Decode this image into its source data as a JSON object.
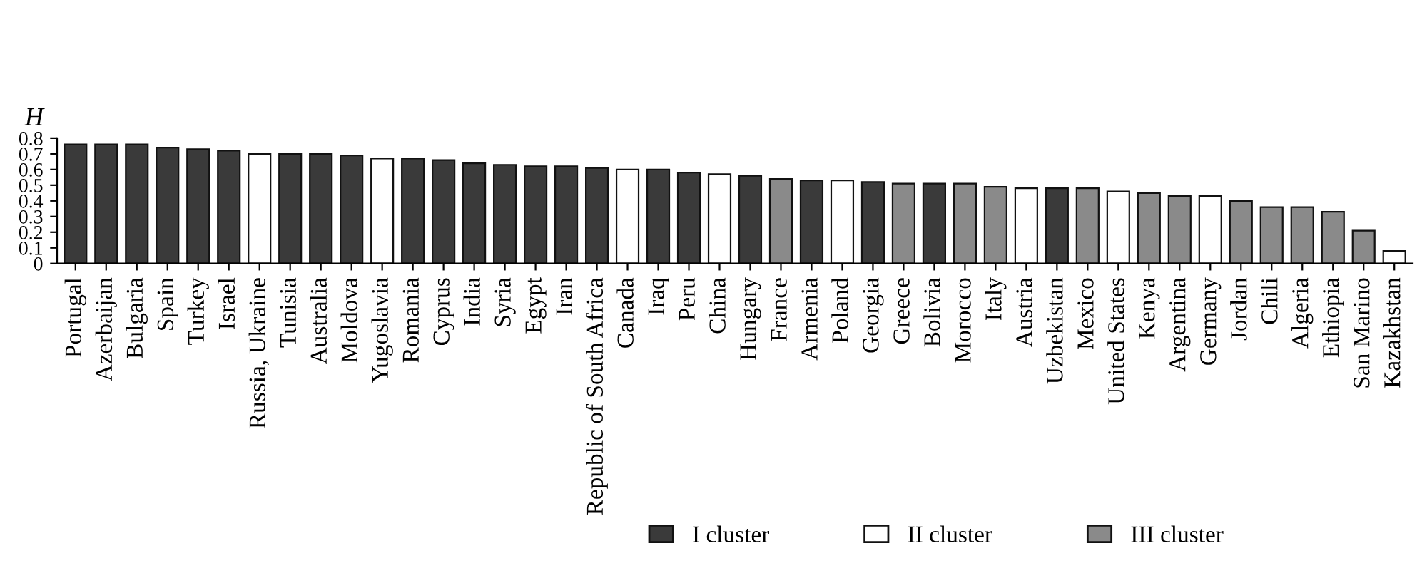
{
  "chart_data": {
    "type": "bar",
    "ylabel": "H",
    "categories": [
      "Portugal",
      "Azerbaijan",
      "Bulgaria",
      "Spain",
      "Turkey",
      "Israel",
      "Russia, Ukraine",
      "Tunisia",
      "Australia",
      "Moldova",
      "Yugoslavia",
      "Romania",
      "Cyprus",
      "India",
      "Syria",
      "Egypt",
      "Iran",
      "Republic of South Africa",
      "Canada",
      "Iraq",
      "Peru",
      "China",
      "Hungary",
      "France",
      "Armenia",
      "Poland",
      "Georgia",
      "Greece",
      "Bolivia",
      "Morocco",
      "Italy",
      "Austria",
      "Uzbekistan",
      "Mexico",
      "United States",
      "Kenya",
      "Argentina",
      "Germany",
      "Jordan",
      "Chili",
      "Algeria",
      "Ethiopia",
      "San Marino",
      "Kazakhstan"
    ],
    "series": [
      {
        "name": "I cluster",
        "color": "#3a3a3a",
        "values": [
          0.76,
          0.76,
          0.76,
          0.74,
          0.73,
          0.72,
          null,
          0.7,
          0.7,
          0.69,
          null,
          0.67,
          0.66,
          0.64,
          0.63,
          0.62,
          0.62,
          0.61,
          null,
          0.6,
          0.58,
          null,
          0.56,
          null,
          0.53,
          null,
          0.52,
          null,
          0.51,
          null,
          null,
          null,
          0.48,
          null,
          null,
          null,
          null,
          null,
          null,
          null,
          null,
          null,
          null,
          null
        ]
      },
      {
        "name": "II cluster",
        "color": "#ffffff",
        "values": [
          null,
          null,
          null,
          null,
          null,
          null,
          0.7,
          null,
          null,
          null,
          0.67,
          null,
          null,
          null,
          null,
          null,
          null,
          null,
          0.6,
          null,
          null,
          0.57,
          null,
          null,
          null,
          0.53,
          null,
          null,
          null,
          null,
          null,
          0.48,
          null,
          null,
          0.46,
          null,
          null,
          0.43,
          null,
          null,
          null,
          null,
          null,
          0.08
        ]
      },
      {
        "name": "III cluster",
        "color": "#8a8a8a",
        "values": [
          null,
          null,
          null,
          null,
          null,
          null,
          null,
          null,
          null,
          null,
          null,
          null,
          null,
          null,
          null,
          null,
          null,
          null,
          null,
          null,
          null,
          null,
          null,
          0.54,
          null,
          null,
          null,
          0.51,
          null,
          0.51,
          0.49,
          null,
          null,
          0.48,
          null,
          0.45,
          0.43,
          null,
          0.4,
          0.36,
          0.36,
          0.33,
          0.21,
          null
        ]
      }
    ],
    "ylim": [
      0,
      0.8
    ],
    "yticks": [
      0,
      0.1,
      0.2,
      0.3,
      0.4,
      0.5,
      0.6,
      0.7,
      0.8
    ],
    "legend": "bottom right",
    "grid": false
  }
}
